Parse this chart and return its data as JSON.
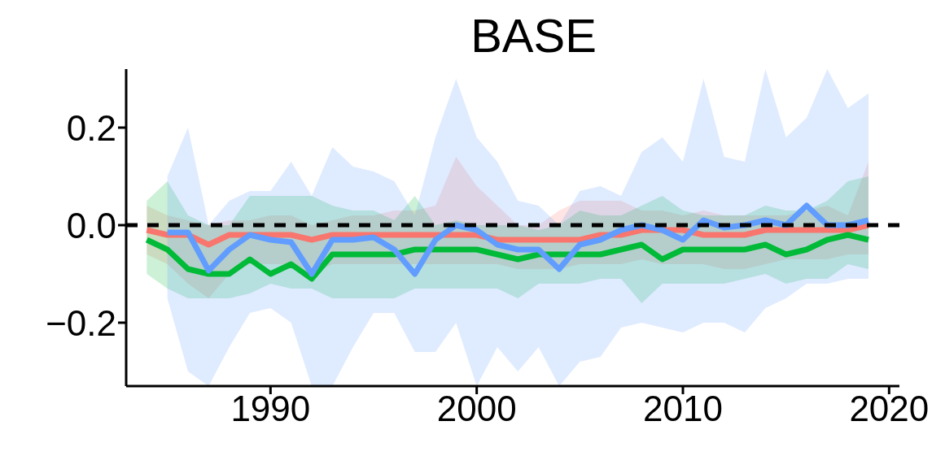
{
  "chart_data": {
    "type": "line",
    "title": "BASE",
    "x": [
      1984,
      1985,
      1986,
      1987,
      1988,
      1989,
      1990,
      1991,
      1992,
      1993,
      1994,
      1995,
      1996,
      1997,
      1998,
      1999,
      2000,
      2001,
      2002,
      2003,
      2004,
      2005,
      2006,
      2007,
      2008,
      2009,
      2010,
      2011,
      2012,
      2013,
      2014,
      2015,
      2016,
      2017,
      2018,
      2019
    ],
    "series": [
      {
        "color": "#f8766d",
        "values": [
          -0.01,
          -0.02,
          -0.02,
          -0.04,
          -0.02,
          -0.02,
          -0.02,
          -0.02,
          -0.03,
          -0.02,
          -0.02,
          -0.02,
          -0.02,
          -0.02,
          -0.02,
          -0.02,
          -0.02,
          -0.03,
          -0.03,
          -0.03,
          -0.03,
          -0.03,
          -0.02,
          -0.02,
          -0.01,
          -0.01,
          -0.01,
          -0.02,
          -0.02,
          -0.02,
          -0.01,
          -0.01,
          -0.01,
          -0.01,
          -0.01,
          0.0
        ],
        "upper": [
          0.04,
          0.02,
          0.01,
          0.0,
          0.01,
          0.01,
          0.02,
          0.02,
          0.0,
          0.01,
          0.02,
          0.02,
          0.03,
          0.03,
          0.04,
          0.14,
          0.08,
          0.04,
          0.0,
          0.0,
          0.03,
          0.05,
          0.05,
          0.05,
          0.03,
          0.03,
          0.02,
          0.03,
          0.02,
          0.02,
          0.02,
          0.02,
          0.03,
          0.04,
          0.02,
          0.13
        ],
        "lower": [
          -0.06,
          -0.08,
          -0.12,
          -0.15,
          -0.1,
          -0.08,
          -0.08,
          -0.08,
          -0.1,
          -0.08,
          -0.08,
          -0.08,
          -0.08,
          -0.08,
          -0.08,
          -0.08,
          -0.08,
          -0.08,
          -0.09,
          -0.09,
          -0.09,
          -0.08,
          -0.08,
          -0.08,
          -0.07,
          -0.08,
          -0.08,
          -0.08,
          -0.09,
          -0.09,
          -0.08,
          -0.07,
          -0.07,
          -0.07,
          -0.06,
          -0.06
        ]
      },
      {
        "color": "#00ba38",
        "values": [
          -0.03,
          -0.05,
          -0.09,
          -0.1,
          -0.1,
          -0.07,
          -0.1,
          -0.08,
          -0.11,
          -0.06,
          -0.06,
          -0.06,
          -0.06,
          -0.05,
          -0.05,
          -0.05,
          -0.05,
          -0.06,
          -0.07,
          -0.06,
          -0.06,
          -0.06,
          -0.06,
          -0.05,
          -0.04,
          -0.07,
          -0.05,
          -0.05,
          -0.05,
          -0.05,
          -0.04,
          -0.06,
          -0.05,
          -0.03,
          -0.02,
          -0.03
        ],
        "upper": [
          0.05,
          0.09,
          0.02,
          0.0,
          0.0,
          0.06,
          0.06,
          0.06,
          0.06,
          0.04,
          0.03,
          0.03,
          0.01,
          0.06,
          0.0,
          0.01,
          0.0,
          0.0,
          0.0,
          -0.01,
          0.0,
          0.03,
          0.02,
          0.02,
          0.04,
          0.06,
          0.03,
          0.02,
          0.02,
          0.02,
          0.04,
          0.03,
          0.03,
          0.05,
          0.09,
          0.1
        ],
        "lower": [
          -0.1,
          -0.13,
          -0.15,
          -0.15,
          -0.15,
          -0.14,
          -0.12,
          -0.13,
          -0.13,
          -0.15,
          -0.15,
          -0.15,
          -0.15,
          -0.13,
          -0.13,
          -0.13,
          -0.13,
          -0.13,
          -0.15,
          -0.12,
          -0.12,
          -0.12,
          -0.11,
          -0.11,
          -0.16,
          -0.12,
          -0.12,
          -0.12,
          -0.12,
          -0.11,
          -0.1,
          -0.12,
          -0.11,
          -0.11,
          -0.08,
          -0.09
        ]
      },
      {
        "color": "#619cff",
        "values": [
          null,
          -0.015,
          -0.015,
          -0.093,
          -0.05,
          -0.02,
          -0.03,
          -0.035,
          -0.1,
          -0.03,
          -0.03,
          -0.025,
          -0.05,
          -0.1,
          -0.03,
          0.0,
          -0.01,
          -0.04,
          -0.05,
          -0.05,
          -0.09,
          -0.04,
          -0.03,
          -0.01,
          0.0,
          -0.01,
          -0.03,
          0.01,
          -0.005,
          0.0,
          0.01,
          0.0,
          0.04,
          0.0,
          0.0,
          0.01
        ],
        "upper": [
          null,
          0.1,
          0.2,
          0.0,
          0.05,
          0.07,
          0.07,
          0.13,
          0.06,
          0.16,
          0.12,
          0.11,
          0.09,
          0.02,
          0.18,
          0.3,
          0.18,
          0.13,
          0.05,
          0.04,
          0.0,
          0.07,
          0.08,
          0.06,
          0.15,
          0.18,
          0.13,
          0.3,
          0.14,
          0.13,
          0.32,
          0.18,
          0.22,
          0.32,
          0.24,
          0.27
        ],
        "lower": [
          null,
          -0.15,
          -0.3,
          -0.33,
          -0.25,
          -0.18,
          -0.17,
          -0.2,
          -0.33,
          -0.33,
          -0.25,
          -0.18,
          -0.18,
          -0.26,
          -0.26,
          -0.2,
          -0.33,
          -0.25,
          -0.3,
          -0.25,
          -0.33,
          -0.28,
          -0.27,
          -0.21,
          -0.2,
          -0.21,
          -0.22,
          -0.2,
          -0.2,
          -0.22,
          -0.17,
          -0.15,
          -0.12,
          -0.12,
          -0.11,
          -0.11
        ]
      }
    ],
    "xlim": [
      1983,
      2020.5
    ],
    "xticks": [
      1990,
      2000,
      2010,
      2020
    ],
    "ylim": [
      -0.33,
      0.32
    ],
    "yticks": [
      {
        "value": -0.2,
        "label": "−0.2"
      },
      {
        "value": 0,
        "label": "0.0"
      },
      {
        "value": 0.2,
        "label": "0.2"
      }
    ],
    "ref_lines": [
      {
        "axis": "y",
        "value": 0,
        "color": "#000000",
        "line_style": "dashed"
      }
    ],
    "marker": "none",
    "line_style": "solid"
  }
}
